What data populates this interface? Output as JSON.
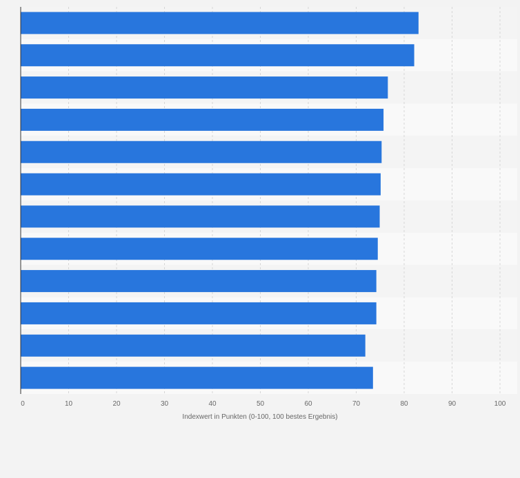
{
  "chart_data": {
    "type": "bar",
    "orientation": "horizontal",
    "categories": [
      "",
      "",
      "",
      "",
      "",
      "",
      "",
      "",
      "",
      "",
      "",
      ""
    ],
    "values": [
      83.0,
      82.1,
      76.6,
      75.7,
      75.3,
      75.1,
      74.9,
      74.5,
      74.2,
      74.2,
      71.9,
      73.5
    ],
    "title": "",
    "xlabel": "Indexwert in Punkten (0-100, 100 bestes Ergebnis)",
    "ylabel": "",
    "xlim": [
      0,
      100
    ],
    "xticks": [
      "0",
      "10",
      "20",
      "30",
      "40",
      "50",
      "60",
      "70",
      "80",
      "90",
      "100"
    ],
    "grid": "vertical dashed",
    "legend": "none",
    "bar_color": "#2876dd",
    "band_colors": [
      "#f4f4f4",
      "#f9f9f9"
    ],
    "background": "#f3f3f3"
  }
}
